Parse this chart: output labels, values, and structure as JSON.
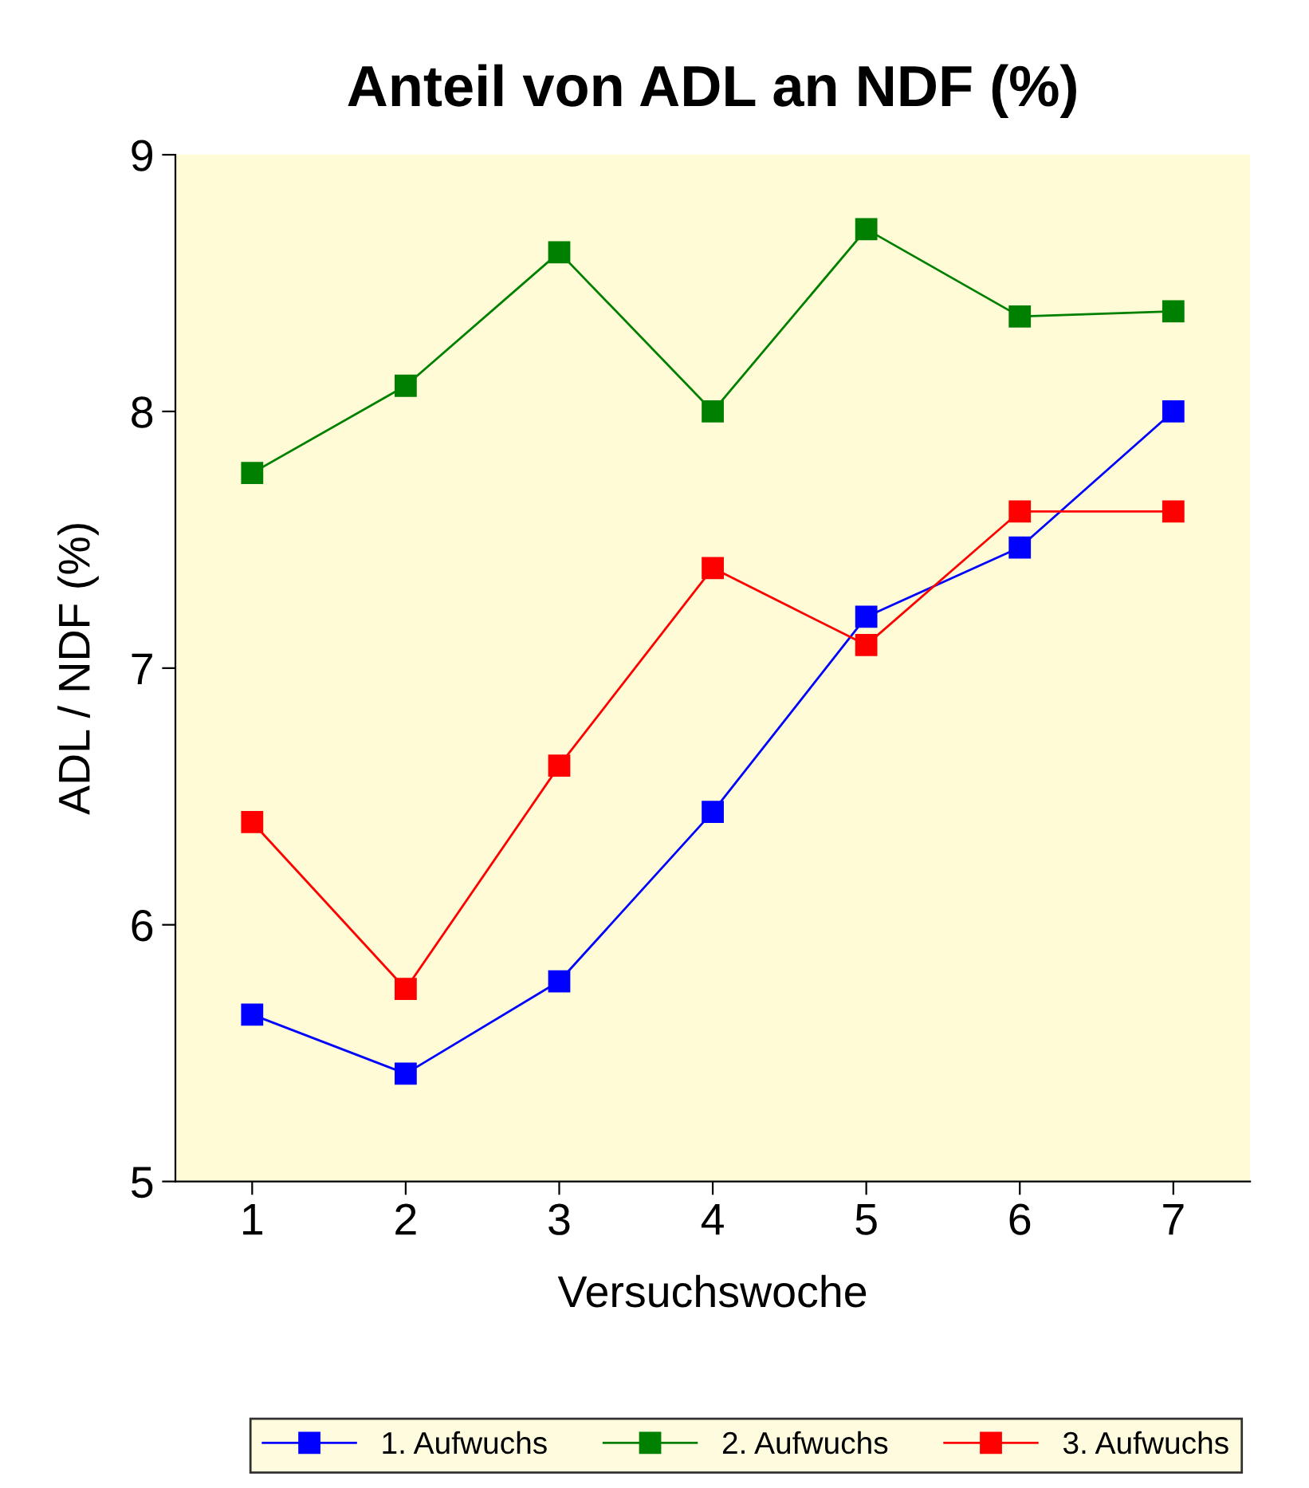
{
  "chart_data": {
    "type": "line",
    "title": "Anteil von ADL an NDF (%)",
    "xlabel": "Versuchswoche",
    "ylabel": "ADL / NDF (%)",
    "categories": [
      "1",
      "2",
      "3",
      "4",
      "5",
      "6",
      "7"
    ],
    "series": [
      {
        "name": "1. Aufwuchs",
        "color": "#0000ff",
        "values": [
          5.65,
          5.42,
          5.78,
          6.44,
          7.2,
          7.47,
          8.0
        ]
      },
      {
        "name": "2. Aufwuchs",
        "color": "#008000",
        "values": [
          7.76,
          8.1,
          8.62,
          8.0,
          8.71,
          8.37,
          8.39
        ]
      },
      {
        "name": "3. Aufwuchs",
        "color": "#ff0000",
        "values": [
          6.4,
          5.75,
          6.62,
          7.39,
          7.09,
          7.61,
          7.61
        ]
      }
    ],
    "ylim": [
      5,
      9
    ],
    "yticks": [
      5,
      6,
      7,
      8,
      9
    ],
    "grid": false,
    "legend": "bottom",
    "marker": "square",
    "line_style": "solid"
  }
}
